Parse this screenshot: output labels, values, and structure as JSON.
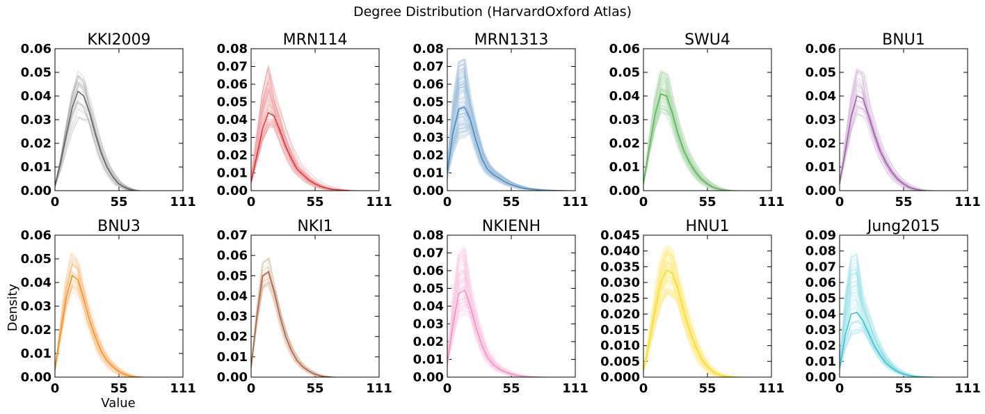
{
  "figure": {
    "title": "Degree Distribution (HarvardOxford Atlas)",
    "xlabel": "Value",
    "ylabel": "Density"
  },
  "chart_data": [
    {
      "type": "line",
      "title": "KKI2009",
      "color": "#4d4d4d",
      "xlim": [
        0,
        111
      ],
      "ylim": [
        0,
        0.06
      ],
      "xticks": [
        "0",
        "55",
        "111"
      ],
      "yticks": [
        "0.00",
        "0.01",
        "0.02",
        "0.03",
        "0.04",
        "0.05",
        "0.06"
      ],
      "n_curves": 40,
      "peak_x": 20,
      "peak_y": 0.042,
      "peak_y_range": [
        0.031,
        0.052
      ],
      "tail_end_x": 70,
      "x": [
        0,
        5,
        10,
        15,
        20,
        25,
        30,
        35,
        40,
        45,
        50,
        55,
        60,
        65,
        70
      ],
      "y": [
        0.002,
        0.012,
        0.024,
        0.035,
        0.042,
        0.04,
        0.033,
        0.024,
        0.016,
        0.01,
        0.006,
        0.003,
        0.0015,
        0.0005,
        0.0
      ]
    },
    {
      "type": "line",
      "title": "MRN114",
      "color": "#e41a1c",
      "xlim": [
        0,
        111
      ],
      "ylim": [
        0,
        0.08
      ],
      "xticks": [
        "0",
        "55",
        "111"
      ],
      "yticks": [
        "0.00",
        "0.01",
        "0.02",
        "0.03",
        "0.04",
        "0.05",
        "0.06",
        "0.07",
        "0.08"
      ],
      "n_curves": 70,
      "peak_x": 15,
      "peak_y": 0.044,
      "peak_y_range": [
        0.035,
        0.071
      ],
      "tail_end_x": 85,
      "x": [
        0,
        5,
        10,
        15,
        20,
        25,
        30,
        35,
        40,
        45,
        50,
        55,
        60,
        65,
        70,
        80,
        85
      ],
      "y": [
        0.005,
        0.02,
        0.035,
        0.044,
        0.042,
        0.034,
        0.025,
        0.018,
        0.012,
        0.009,
        0.006,
        0.004,
        0.0025,
        0.0015,
        0.0008,
        0.0002,
        0.0
      ]
    },
    {
      "type": "line",
      "title": "MRN1313",
      "color": "#377eb8",
      "xlim": [
        0,
        111
      ],
      "ylim": [
        0,
        0.08
      ],
      "xticks": [
        "0",
        "55",
        "111"
      ],
      "yticks": [
        "0.00",
        "0.01",
        "0.02",
        "0.03",
        "0.04",
        "0.05",
        "0.06",
        "0.07",
        "0.08"
      ],
      "n_curves": 200,
      "peak_x": 12,
      "peak_y": 0.048,
      "peak_y_range": [
        0.03,
        0.076
      ],
      "tail_end_x": 100,
      "x": [
        0,
        5,
        10,
        15,
        20,
        25,
        30,
        35,
        40,
        45,
        50,
        55,
        60,
        65,
        70,
        80,
        90,
        100
      ],
      "y": [
        0.01,
        0.033,
        0.046,
        0.047,
        0.04,
        0.028,
        0.018,
        0.012,
        0.009,
        0.007,
        0.005,
        0.0035,
        0.0025,
        0.0015,
        0.001,
        0.0004,
        0.0001,
        0.0
      ]
    },
    {
      "type": "line",
      "title": "SWU4",
      "color": "#4daf4a",
      "xlim": [
        0,
        111
      ],
      "ylim": [
        0,
        0.06
      ],
      "xticks": [
        "0",
        "55",
        "111"
      ],
      "yticks": [
        "0.00",
        "0.01",
        "0.02",
        "0.03",
        "0.04",
        "0.05",
        "0.06"
      ],
      "n_curves": 120,
      "peak_x": 16,
      "peak_y": 0.041,
      "peak_y_range": [
        0.033,
        0.051
      ],
      "tail_end_x": 75,
      "x": [
        0,
        5,
        10,
        15,
        20,
        25,
        30,
        35,
        40,
        45,
        50,
        55,
        60,
        65,
        70,
        75
      ],
      "y": [
        0.003,
        0.018,
        0.032,
        0.041,
        0.04,
        0.033,
        0.024,
        0.017,
        0.012,
        0.008,
        0.005,
        0.003,
        0.0015,
        0.0007,
        0.0002,
        0.0
      ]
    },
    {
      "type": "line",
      "title": "BNU1",
      "color": "#984ea3",
      "xlim": [
        0,
        111
      ],
      "ylim": [
        0,
        0.06
      ],
      "xticks": [
        "0",
        "55",
        "111"
      ],
      "yticks": [
        "0.00",
        "0.01",
        "0.02",
        "0.03",
        "0.04",
        "0.05",
        "0.06"
      ],
      "n_curves": 50,
      "peak_x": 16,
      "peak_y": 0.04,
      "peak_y_range": [
        0.032,
        0.052
      ],
      "tail_end_x": 75,
      "x": [
        0,
        5,
        10,
        15,
        20,
        25,
        30,
        35,
        40,
        45,
        50,
        55,
        60,
        65,
        70,
        75
      ],
      "y": [
        0.003,
        0.017,
        0.031,
        0.04,
        0.039,
        0.032,
        0.024,
        0.017,
        0.012,
        0.008,
        0.005,
        0.003,
        0.0015,
        0.0007,
        0.0002,
        0.0
      ]
    },
    {
      "type": "line",
      "title": "BNU3",
      "color": "#ff7f00",
      "xlim": [
        0,
        111
      ],
      "ylim": [
        0,
        0.06
      ],
      "xticks": [
        "0",
        "55",
        "111"
      ],
      "yticks": [
        "0.00",
        "0.01",
        "0.02",
        "0.03",
        "0.04",
        "0.05",
        "0.06"
      ],
      "n_curves": 45,
      "peak_x": 16,
      "peak_y": 0.043,
      "peak_y_range": [
        0.035,
        0.054
      ],
      "tail_end_x": 75,
      "x": [
        0,
        5,
        10,
        15,
        20,
        25,
        30,
        35,
        40,
        45,
        50,
        55,
        60,
        65,
        70,
        75
      ],
      "y": [
        0.003,
        0.019,
        0.034,
        0.043,
        0.041,
        0.033,
        0.024,
        0.017,
        0.011,
        0.007,
        0.0045,
        0.0025,
        0.0012,
        0.0005,
        0.0001,
        0.0
      ]
    },
    {
      "type": "line",
      "title": "NKI1",
      "color": "#a65628",
      "xlim": [
        0,
        111
      ],
      "ylim": [
        0,
        0.07
      ],
      "xticks": [
        "0",
        "55",
        "111"
      ],
      "yticks": [
        "0.00",
        "0.01",
        "0.02",
        "0.03",
        "0.04",
        "0.05",
        "0.06",
        "0.07"
      ],
      "n_curves": 40,
      "peak_x": 12,
      "peak_y": 0.053,
      "peak_y_range": [
        0.045,
        0.06
      ],
      "tail_end_x": 70,
      "x": [
        0,
        5,
        10,
        15,
        20,
        25,
        30,
        35,
        40,
        45,
        50,
        55,
        60,
        65,
        70
      ],
      "y": [
        0.005,
        0.03,
        0.05,
        0.052,
        0.042,
        0.03,
        0.02,
        0.013,
        0.008,
        0.005,
        0.003,
        0.0015,
        0.0006,
        0.0002,
        0.0
      ]
    },
    {
      "type": "line",
      "title": "NKIENH",
      "color": "#f781bf",
      "xlim": [
        0,
        111
      ],
      "ylim": [
        0,
        0.08
      ],
      "xticks": [
        "0",
        "55",
        "111"
      ],
      "yticks": [
        "0.00",
        "0.01",
        "0.02",
        "0.03",
        "0.04",
        "0.05",
        "0.06",
        "0.07",
        "0.08"
      ],
      "n_curves": 120,
      "peak_x": 12,
      "peak_y": 0.05,
      "peak_y_range": [
        0.035,
        0.075
      ],
      "tail_end_x": 80,
      "x": [
        0,
        5,
        10,
        15,
        20,
        25,
        30,
        35,
        40,
        45,
        50,
        55,
        60,
        65,
        70,
        80
      ],
      "y": [
        0.008,
        0.03,
        0.047,
        0.049,
        0.04,
        0.028,
        0.018,
        0.011,
        0.007,
        0.0045,
        0.003,
        0.0018,
        0.001,
        0.0005,
        0.0002,
        0.0
      ]
    },
    {
      "type": "line",
      "title": "HNU1",
      "color": "#ffd700",
      "xlim": [
        0,
        111
      ],
      "ylim": [
        0,
        0.045
      ],
      "xticks": [
        "0",
        "55",
        "111"
      ],
      "yticks": [
        "0.000",
        "0.005",
        "0.010",
        "0.015",
        "0.020",
        "0.025",
        "0.030",
        "0.035",
        "0.040",
        "0.045"
      ],
      "n_curves": 150,
      "peak_x": 20,
      "peak_y": 0.034,
      "peak_y_range": [
        0.026,
        0.042
      ],
      "tail_end_x": 80,
      "x": [
        0,
        5,
        10,
        15,
        20,
        25,
        30,
        35,
        40,
        45,
        50,
        55,
        60,
        65,
        70,
        80
      ],
      "y": [
        0.002,
        0.011,
        0.021,
        0.03,
        0.034,
        0.033,
        0.028,
        0.021,
        0.015,
        0.01,
        0.006,
        0.0035,
        0.0018,
        0.0008,
        0.0003,
        0.0
      ]
    },
    {
      "type": "line",
      "title": "Jung2015",
      "color": "#17becf",
      "xlim": [
        0,
        111
      ],
      "ylim": [
        0,
        0.09
      ],
      "xticks": [
        "0",
        "55",
        "111"
      ],
      "yticks": [
        "0.00",
        "0.01",
        "0.02",
        "0.03",
        "0.04",
        "0.05",
        "0.06",
        "0.07",
        "0.08",
        "0.09"
      ],
      "n_curves": 80,
      "peak_x": 12,
      "peak_y": 0.042,
      "peak_y_range": [
        0.028,
        0.083
      ],
      "tail_end_x": 80,
      "x": [
        0,
        5,
        10,
        15,
        20,
        25,
        30,
        35,
        40,
        45,
        50,
        55,
        60,
        65,
        70,
        80
      ],
      "y": [
        0.006,
        0.027,
        0.04,
        0.041,
        0.036,
        0.028,
        0.02,
        0.014,
        0.009,
        0.006,
        0.0035,
        0.002,
        0.001,
        0.0005,
        0.0002,
        0.0
      ]
    }
  ]
}
